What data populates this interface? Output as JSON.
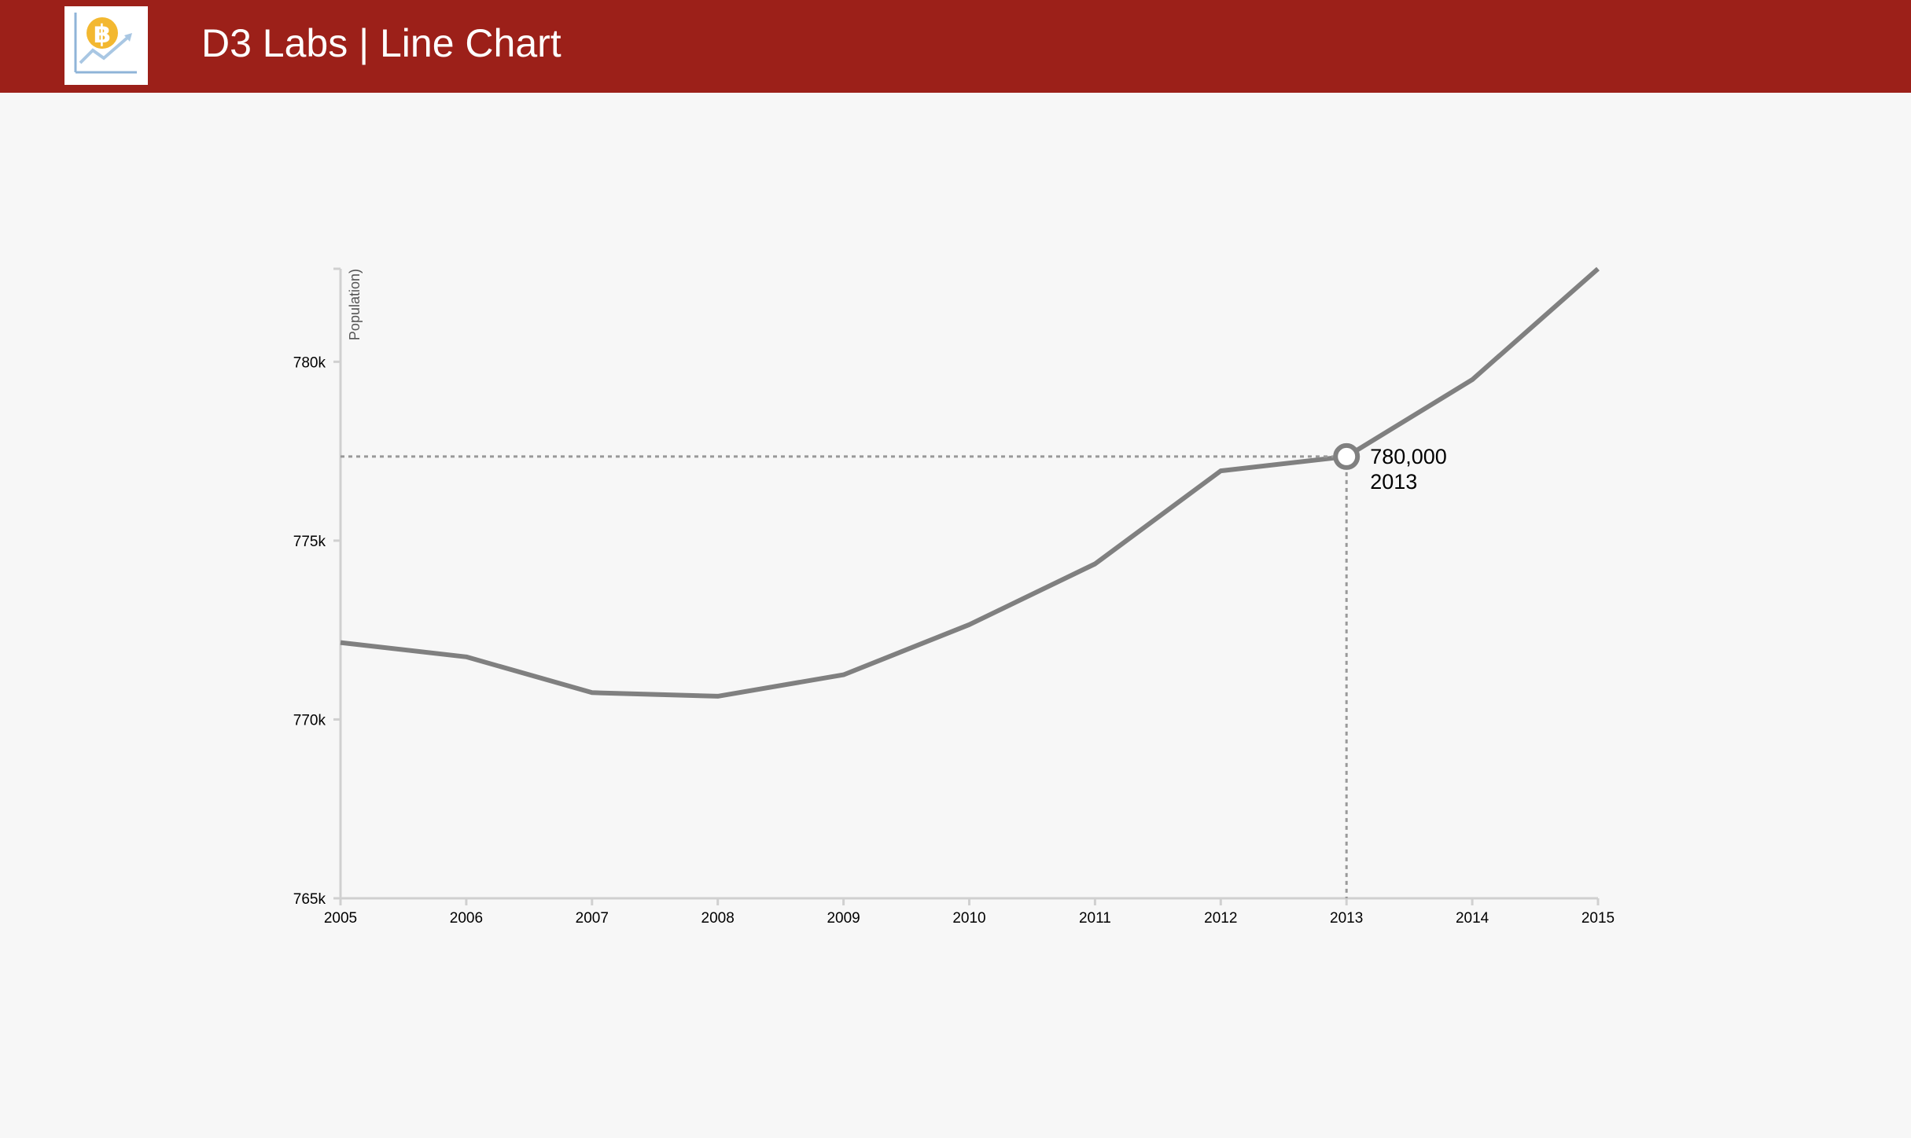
{
  "header": {
    "title": "D3 Labs | Line Chart",
    "logo_icon": "bitcoin-chart-logo-icon",
    "bar_color": "#9c2019"
  },
  "chart_data": {
    "type": "line",
    "title": "",
    "xlabel": "",
    "ylabel": "Population)",
    "x": [
      2005,
      2006,
      2007,
      2008,
      2009,
      2010,
      2011,
      2012,
      2013,
      2014,
      2015
    ],
    "series": [
      {
        "values": [
          772150,
          771750,
          770750,
          770650,
          771250,
          772650,
          774350,
          776950,
          777350,
          779500,
          782600
        ],
        "color": "#808080"
      }
    ],
    "xlim": [
      2005,
      2015
    ],
    "ylim": [
      765000,
      782600
    ],
    "x_ticks": [
      "2005",
      "2006",
      "2007",
      "2008",
      "2009",
      "2010",
      "2011",
      "2012",
      "2013",
      "2014",
      "2015"
    ],
    "y_ticks": [
      {
        "value": 765000,
        "label": "765k"
      },
      {
        "value": 770000,
        "label": "770k"
      },
      {
        "value": 775000,
        "label": "775k"
      },
      {
        "value": 780000,
        "label": "780k"
      }
    ],
    "grid": false,
    "legend": "none",
    "focus": {
      "x": 2013,
      "y": 777350,
      "value_label": "780,000",
      "year_label": "2013"
    }
  }
}
